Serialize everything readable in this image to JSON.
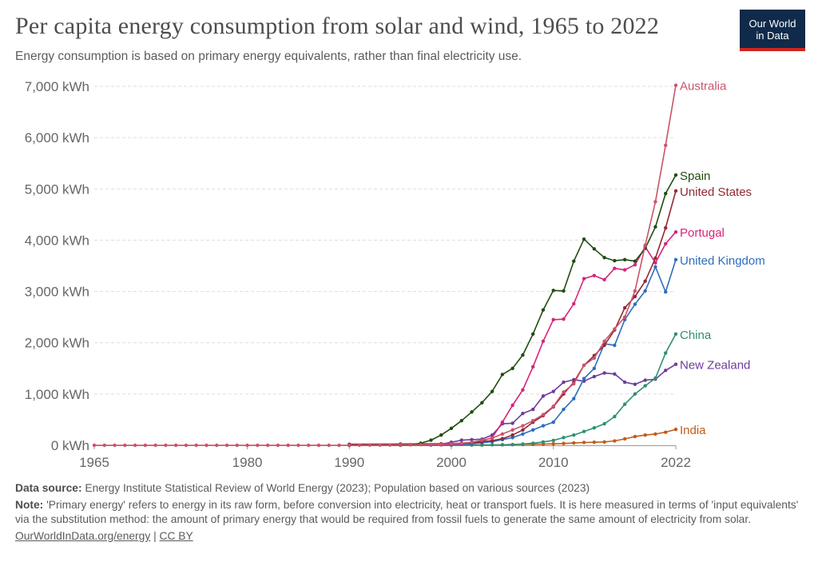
{
  "header": {
    "title": "Per capita energy consumption from solar and wind, 1965 to 2022",
    "subtitle": "Energy consumption is based on primary energy equivalents, rather than final electricity use.",
    "logo_line1": "Our World",
    "logo_line2": "in Data"
  },
  "footer": {
    "source_label": "Data source:",
    "source_text": "Energy Institute Statistical Review of World Energy (2023); Population based on various sources (2023)",
    "note_label": "Note:",
    "note_text": "'Primary energy' refers to energy in its raw form, before conversion into electricity, heat or transport fuels. It is here measured in terms of 'input equivalents' via the substitution method: the amount of primary energy that would be required from fossil fuels to generate the same amount of electricity from solar.",
    "link_text": "OurWorldInData.org/energy",
    "separator": "|",
    "license_text": "CC BY"
  },
  "chart_data": {
    "type": "line",
    "title": "Per capita energy consumption from solar and wind, 1965 to 2022",
    "xlabel": "",
    "ylabel": "",
    "xlim": [
      1965,
      2022
    ],
    "ylim": [
      0,
      7000
    ],
    "x_ticks": [
      1965,
      1980,
      1990,
      2000,
      2010,
      2022
    ],
    "y_ticks": [
      0,
      1000,
      2000,
      3000,
      4000,
      5000,
      6000,
      7000
    ],
    "y_tick_labels": [
      "0 kWh",
      "1,000 kWh",
      "2,000 kWh",
      "3,000 kWh",
      "4,000 kWh",
      "5,000 kWh",
      "6,000 kWh",
      "7,000 kWh"
    ],
    "grid": true,
    "legend": "inline-right",
    "series": [
      {
        "name": "India",
        "color": "#c15b19",
        "x": [
          1990,
          1995,
          2000,
          2003,
          2005,
          2006,
          2007,
          2008,
          2009,
          2010,
          2011,
          2012,
          2013,
          2014,
          2015,
          2016,
          2017,
          2018,
          2019,
          2020,
          2021,
          2022
        ],
        "values": [
          0,
          1,
          3,
          5,
          8,
          12,
          15,
          19,
          22,
          28,
          35,
          45,
          55,
          60,
          65,
          85,
          125,
          170,
          200,
          220,
          255,
          310
        ]
      },
      {
        "name": "New Zealand",
        "color": "#6b3d99",
        "x": [
          1990,
          1998,
          1999,
          2000,
          2001,
          2002,
          2003,
          2004,
          2005,
          2006,
          2007,
          2008,
          2009,
          2010,
          2011,
          2012,
          2013,
          2014,
          2015,
          2016,
          2017,
          2018,
          2019,
          2020,
          2021,
          2022
        ],
        "values": [
          0,
          5,
          20,
          60,
          100,
          110,
          120,
          200,
          420,
          430,
          620,
          700,
          960,
          1050,
          1230,
          1280,
          1250,
          1340,
          1410,
          1390,
          1230,
          1190,
          1270,
          1290,
          1460,
          1580
        ]
      },
      {
        "name": "China",
        "color": "#2e8f73",
        "x": [
          1990,
          2000,
          2002,
          2003,
          2004,
          2005,
          2006,
          2007,
          2008,
          2009,
          2010,
          2011,
          2012,
          2013,
          2014,
          2015,
          2016,
          2017,
          2018,
          2019,
          2020,
          2021,
          2022
        ],
        "values": [
          0,
          2,
          5,
          6,
          8,
          10,
          15,
          25,
          40,
          65,
          95,
          150,
          200,
          270,
          340,
          420,
          560,
          800,
          1000,
          1160,
          1310,
          1800,
          2170
        ]
      },
      {
        "name": "United Kingdom",
        "color": "#2e6dbd",
        "x": [
          1990,
          1995,
          1999,
          2000,
          2001,
          2002,
          2003,
          2004,
          2005,
          2006,
          2007,
          2008,
          2009,
          2010,
          2011,
          2012,
          2013,
          2014,
          2015,
          2016,
          2017,
          2018,
          2019,
          2020,
          2021,
          2022
        ],
        "values": [
          0,
          5,
          8,
          10,
          20,
          30,
          50,
          70,
          110,
          150,
          220,
          300,
          380,
          450,
          700,
          910,
          1300,
          1500,
          1980,
          1950,
          2450,
          2750,
          3010,
          3480,
          2990,
          3620
        ]
      },
      {
        "name": "Portugal",
        "color": "#d6247a",
        "x": [
          1990,
          1995,
          1999,
          2000,
          2001,
          2002,
          2003,
          2004,
          2005,
          2006,
          2007,
          2008,
          2009,
          2010,
          2011,
          2012,
          2013,
          2014,
          2015,
          2016,
          2017,
          2018,
          2019,
          2020,
          2021,
          2022
        ],
        "values": [
          0,
          5,
          10,
          20,
          30,
          50,
          80,
          150,
          450,
          780,
          1080,
          1530,
          2030,
          2450,
          2460,
          2760,
          3250,
          3310,
          3230,
          3450,
          3420,
          3520,
          3870,
          3560,
          3930,
          4160
        ]
      },
      {
        "name": "United States",
        "color": "#932834",
        "x": [
          1990,
          1995,
          1999,
          2000,
          2001,
          2002,
          2003,
          2004,
          2005,
          2006,
          2007,
          2008,
          2009,
          2010,
          2011,
          2012,
          2013,
          2014,
          2015,
          2016,
          2017,
          2018,
          2019,
          2020,
          2021,
          2022
        ],
        "values": [
          20,
          25,
          30,
          35,
          40,
          50,
          70,
          90,
          130,
          200,
          300,
          450,
          580,
          750,
          1000,
          1230,
          1560,
          1750,
          1950,
          2250,
          2680,
          2900,
          3200,
          3650,
          4240,
          4960
        ]
      },
      {
        "name": "Spain",
        "color": "#1e4d10",
        "x": [
          1990,
          1995,
          1996,
          1997,
          1998,
          1999,
          2000,
          2001,
          2002,
          2003,
          2004,
          2005,
          2006,
          2007,
          2008,
          2009,
          2010,
          2011,
          2012,
          2013,
          2014,
          2015,
          2016,
          2017,
          2018,
          2019,
          2020,
          2021,
          2022
        ],
        "values": [
          0,
          5,
          10,
          40,
          100,
          200,
          330,
          480,
          650,
          830,
          1050,
          1380,
          1500,
          1760,
          2170,
          2640,
          3020,
          3010,
          3590,
          4020,
          3830,
          3660,
          3600,
          3620,
          3590,
          3840,
          4260,
          4910,
          5270
        ]
      },
      {
        "name": "Australia",
        "color": "#c9546a",
        "x": [
          1965,
          1966,
          1967,
          1968,
          1969,
          1970,
          1971,
          1972,
          1973,
          1974,
          1975,
          1976,
          1977,
          1978,
          1979,
          1980,
          1981,
          1982,
          1983,
          1984,
          1985,
          1986,
          1987,
          1988,
          1989,
          1990,
          1991,
          1992,
          1993,
          1994,
          1995,
          1996,
          1997,
          1998,
          1999,
          2000,
          2001,
          2002,
          2003,
          2004,
          2005,
          2006,
          2007,
          2008,
          2009,
          2010,
          2011,
          2012,
          2013,
          2014,
          2015,
          2016,
          2017,
          2018,
          2019,
          2020,
          2021,
          2022
        ],
        "values": [
          0,
          0,
          0,
          0,
          0,
          0,
          0,
          0,
          0,
          0,
          0,
          0,
          0,
          0,
          0,
          0,
          0,
          0,
          0,
          0,
          0,
          0,
          0,
          0,
          0,
          2,
          3,
          4,
          5,
          6,
          8,
          10,
          12,
          15,
          20,
          30,
          40,
          60,
          100,
          140,
          220,
          300,
          380,
          480,
          600,
          760,
          1040,
          1200,
          1560,
          1700,
          2030,
          2270,
          2500,
          3010,
          3900,
          4750,
          5850,
          7020
        ]
      }
    ]
  }
}
